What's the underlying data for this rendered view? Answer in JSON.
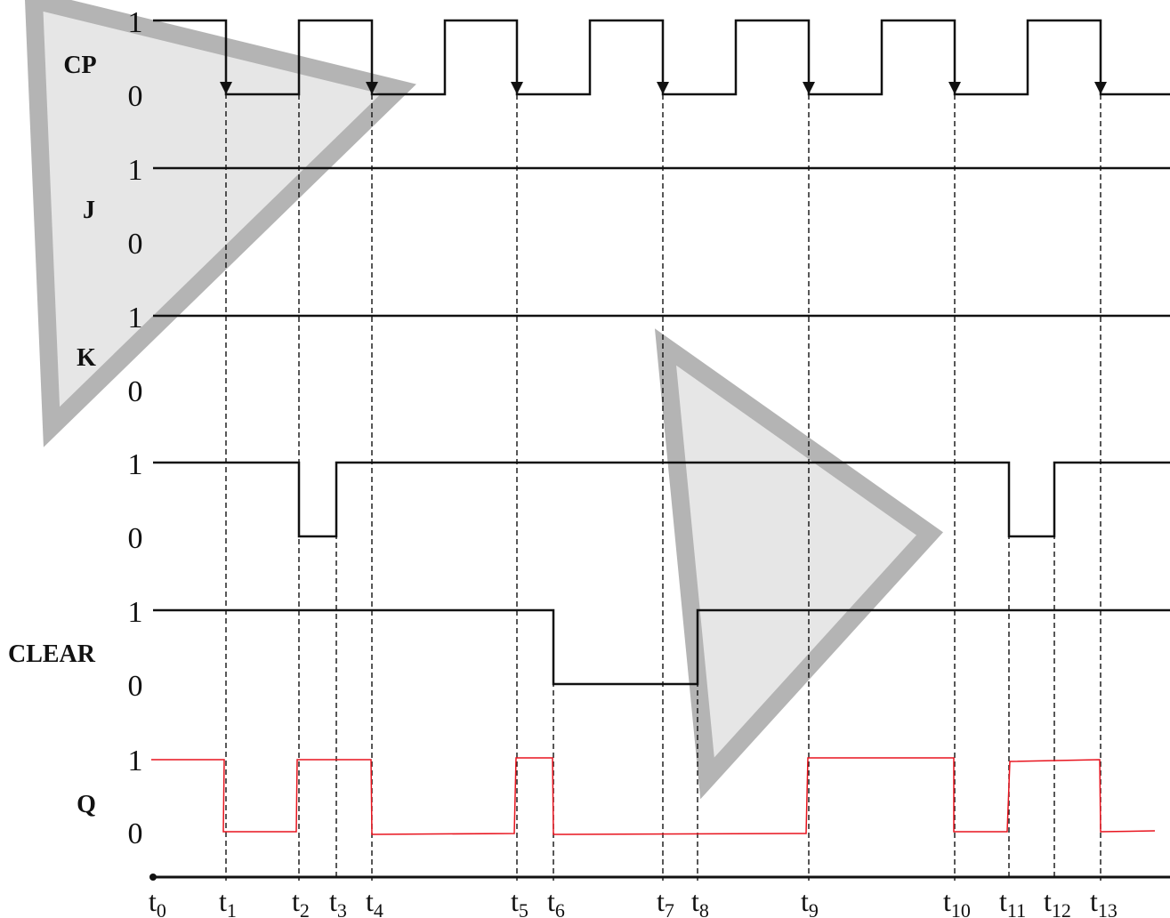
{
  "timing_diagram": {
    "signals": [
      {
        "name": "CP",
        "high_label": "1",
        "low_label": "0"
      },
      {
        "name": "J",
        "high_label": "1",
        "low_label": "0"
      },
      {
        "name": "K",
        "high_label": "1",
        "low_label": "0"
      },
      {
        "name": "",
        "high_label": "1",
        "low_label": "0"
      },
      {
        "name": "CLEAR",
        "high_label": "1",
        "low_label": "0"
      },
      {
        "name": "Q",
        "high_label": "1",
        "low_label": "0"
      }
    ],
    "time_marks": [
      {
        "base": "t",
        "sub": "0"
      },
      {
        "base": "t",
        "sub": "1"
      },
      {
        "base": "t",
        "sub": "2"
      },
      {
        "base": "t",
        "sub": "3"
      },
      {
        "base": "t",
        "sub": "4"
      },
      {
        "base": "t",
        "sub": "5"
      },
      {
        "base": "t",
        "sub": "6"
      },
      {
        "base": "t",
        "sub": "7"
      },
      {
        "base": "t",
        "sub": "8"
      },
      {
        "base": "t",
        "sub": "9"
      },
      {
        "base": "t",
        "sub": "10"
      },
      {
        "base": "t",
        "sub": "11"
      },
      {
        "base": "t",
        "sub": "12"
      },
      {
        "base": "t",
        "sub": "13"
      }
    ],
    "colors": {
      "signal": "#111111",
      "output": "#e8141e",
      "watermark_fill": "#e6e6e6",
      "watermark_stroke": "#b4b4b4"
    }
  }
}
